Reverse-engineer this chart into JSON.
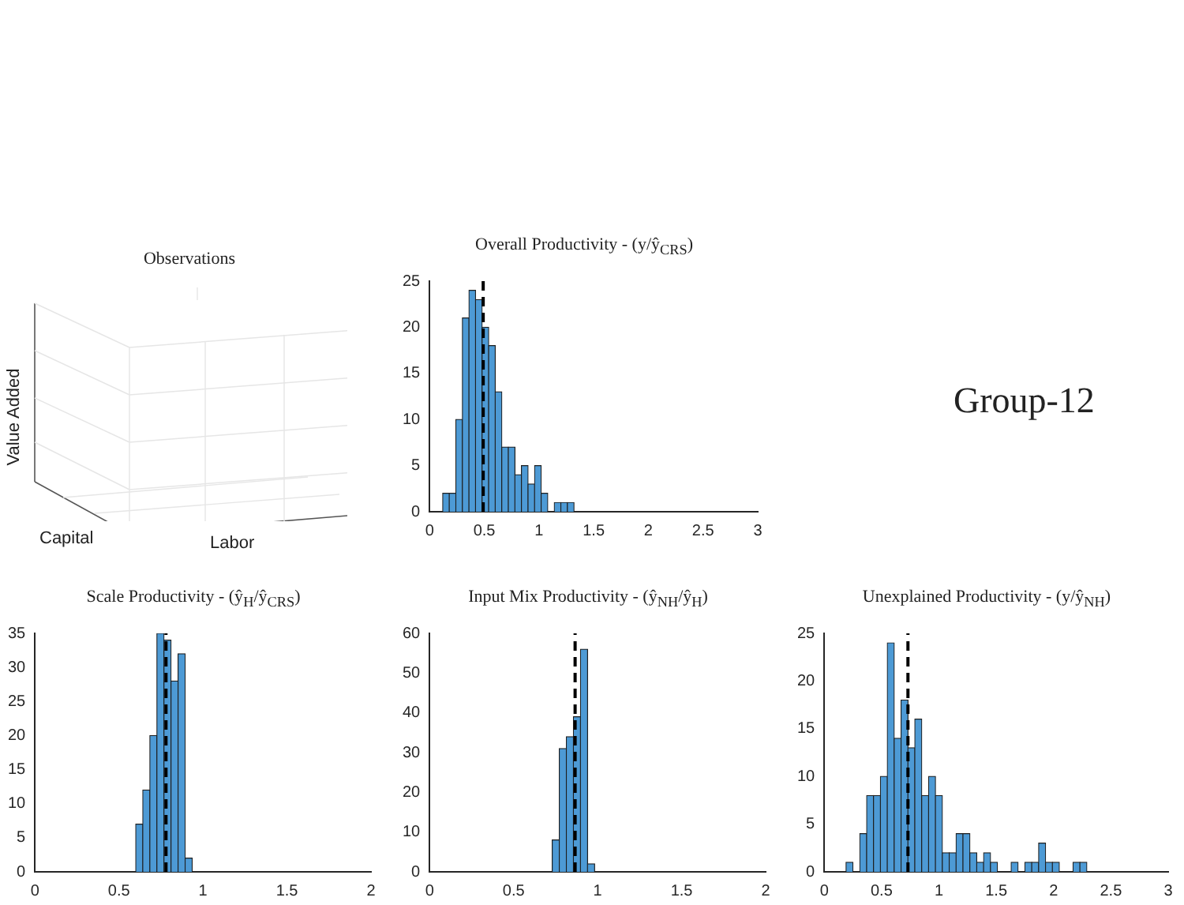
{
  "chart_data": [
    {
      "type": "other",
      "title": "Observations",
      "xlabel": "Labor",
      "ylabel": "Value Added",
      "annotations": [
        "Capital"
      ]
    },
    {
      "type": "histogram",
      "title": "Overall Productivity - (y/ŷ$_{CRS}$)",
      "color": "#4d9ad5",
      "bins": [
        0.12,
        0.18,
        0.24,
        0.3,
        0.36,
        0.42,
        0.48,
        0.54,
        0.6,
        0.66,
        0.72,
        0.78,
        0.84,
        0.9,
        0.96,
        1.02,
        1.08,
        1.14,
        1.2,
        1.26,
        1.32
      ],
      "values": [
        2,
        2,
        10,
        21,
        24,
        23,
        20,
        18,
        13,
        7,
        7,
        4,
        5,
        3,
        5,
        2,
        0,
        1,
        1,
        1
      ],
      "xlim": [
        0,
        3
      ],
      "xticks": [
        0,
        0.5,
        1,
        1.5,
        2,
        2.5,
        3
      ],
      "ylim": [
        0,
        25
      ],
      "yticks": [
        0,
        5,
        10,
        15,
        20,
        25
      ],
      "ref_lines": [
        {
          "axis": "x",
          "value": 0.49,
          "color": "#000000",
          "line_style": "dashed"
        }
      ]
    },
    {
      "type": "other",
      "annotations": [
        "Group-12"
      ]
    },
    {
      "type": "histogram",
      "title": "Scale Productivity - (ŷ$_{H}$/ŷ$_{CRS}$)",
      "color": "#4d9ad5",
      "bins": [
        0.6,
        0.642,
        0.684,
        0.726,
        0.768,
        0.81,
        0.852,
        0.894,
        0.936
      ],
      "values": [
        7,
        12,
        20,
        35,
        34,
        28,
        32,
        2
      ],
      "xlim": [
        0,
        2
      ],
      "xticks": [
        0,
        0.5,
        1,
        1.5,
        2
      ],
      "ylim": [
        0,
        35
      ],
      "yticks": [
        0,
        5,
        10,
        15,
        20,
        25,
        30,
        35
      ],
      "ref_lines": [
        {
          "axis": "x",
          "value": 0.78,
          "color": "#000000",
          "line_style": "dashed"
        }
      ]
    },
    {
      "type": "histogram",
      "title": "Input Mix Productivity - (ŷ$_{NH}$/ŷ$_{H}$)",
      "color": "#4d9ad5",
      "bins": [
        0.73,
        0.772,
        0.814,
        0.856,
        0.898,
        0.94,
        0.982
      ],
      "values": [
        8,
        31,
        34,
        39,
        56,
        2
      ],
      "xlim": [
        0,
        2
      ],
      "xticks": [
        0,
        0.5,
        1,
        1.5,
        2
      ],
      "ylim": [
        0,
        60
      ],
      "yticks": [
        0,
        10,
        20,
        30,
        40,
        50,
        60
      ],
      "ref_lines": [
        {
          "axis": "x",
          "value": 0.866,
          "color": "#000000",
          "line_style": "dashed"
        }
      ]
    },
    {
      "type": "histogram",
      "title": "Unexplained Productivity - (y/ŷ$_{NH}$)",
      "color": "#4d9ad5",
      "bins": [
        0.19,
        0.25,
        0.31,
        0.37,
        0.43,
        0.49,
        0.55,
        0.61,
        0.67,
        0.73,
        0.79,
        0.85,
        0.91,
        0.97,
        1.03,
        1.09,
        1.15,
        1.21,
        1.27,
        1.33,
        1.39,
        1.45,
        1.51,
        1.57,
        1.63,
        1.69,
        1.75,
        1.81,
        1.87,
        1.93,
        1.99,
        2.05,
        2.11,
        2.17,
        2.23,
        2.29
      ],
      "values": [
        1,
        0,
        4,
        8,
        8,
        10,
        24,
        14,
        18,
        13,
        16,
        8,
        10,
        8,
        2,
        2,
        4,
        4,
        2,
        1,
        2,
        1,
        0,
        0,
        1,
        0,
        1,
        1,
        3,
        1,
        1,
        0,
        0,
        1,
        1
      ],
      "xlim": [
        0,
        3
      ],
      "xticks": [
        0,
        0.5,
        1,
        1.5,
        2,
        2.5,
        3
      ],
      "ylim": [
        0,
        25
      ],
      "yticks": [
        0,
        5,
        10,
        15,
        20,
        25
      ],
      "ref_lines": [
        {
          "axis": "x",
          "value": 0.73,
          "color": "#000000",
          "line_style": "dashed"
        }
      ]
    }
  ]
}
